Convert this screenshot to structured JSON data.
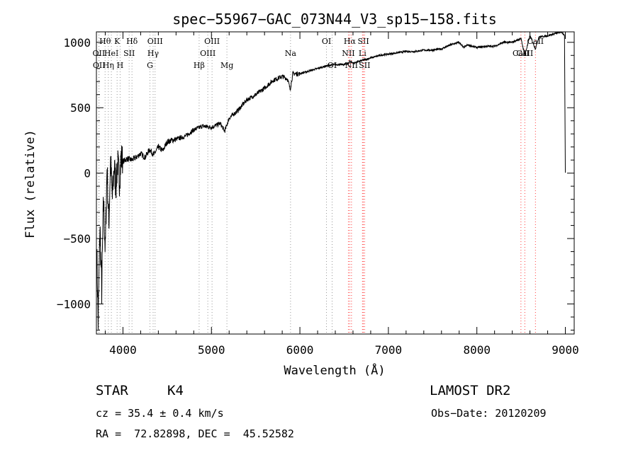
{
  "chart_data": {
    "type": "line",
    "title": "spec−55967−GAC_073N44_V3_sp15−158.fits",
    "xlabel": "Wavelength (Å)",
    "ylabel": "Flux (relative)",
    "xlim": [
      3700,
      9100
    ],
    "ylim": [
      -1230,
      1080
    ],
    "xticks": [
      4000,
      5000,
      6000,
      7000,
      8000,
      9000
    ],
    "yticks": [
      -1000,
      -500,
      0,
      500,
      1000
    ],
    "ytick_labels": [
      "−1000",
      "−500",
      "0",
      "500",
      "1000"
    ],
    "grid": false,
    "series": [
      {
        "x": [
          3705,
          3720,
          3740,
          3760,
          3780,
          3800,
          3820,
          3840,
          3860,
          3880,
          3900,
          3920,
          3940,
          3960,
          3980,
          4000,
          4050,
          4100,
          4150,
          4200,
          4250,
          4300,
          4350,
          4400,
          4450,
          4500,
          4600,
          4700,
          4800,
          4900,
          5000,
          5100,
          5150,
          5200,
          5300,
          5400,
          5500,
          5600,
          5700,
          5800,
          5860,
          5890,
          5920,
          6000,
          6100,
          6200,
          6300,
          6400,
          6500,
          6550,
          6563,
          6600,
          6700,
          6800,
          6900,
          7000,
          7100,
          7200,
          7300,
          7400,
          7500,
          7600,
          7700,
          7800,
          7850,
          7900,
          8000,
          8100,
          8200,
          8300,
          8400,
          8498,
          8542,
          8600,
          8662,
          8700,
          8800,
          8900,
          8960,
          8990,
          9000
        ],
        "y": [
          -600,
          -1150,
          -400,
          -900,
          -200,
          -600,
          50,
          -400,
          100,
          -200,
          60,
          -100,
          80,
          -50,
          120,
          90,
          110,
          100,
          120,
          150,
          120,
          180,
          140,
          200,
          170,
          240,
          260,
          280,
          330,
          360,
          350,
          380,
          320,
          420,
          480,
          560,
          600,
          650,
          710,
          740,
          720,
          640,
          760,
          760,
          780,
          800,
          820,
          830,
          830,
          840,
          860,
          840,
          860,
          880,
          900,
          910,
          920,
          930,
          930,
          940,
          940,
          950,
          980,
          1000,
          960,
          980,
          960,
          970,
          970,
          1000,
          1000,
          1030,
          900,
          1050,
          950,
          1040,
          1050,
          1070,
          1080,
          1050,
          0
        ],
        "color": "#000000"
      }
    ],
    "line_markers": [
      {
        "label": "OII",
        "x": 3727,
        "color": "gray",
        "tier": 1
      },
      {
        "label": "OII",
        "x": 3730,
        "color": "gray",
        "tier": 2
      },
      {
        "label": "Hθ",
        "x": 3798,
        "color": "gray",
        "tier": 0
      },
      {
        "label": "Hη",
        "x": 3835,
        "color": "gray",
        "tier": 2
      },
      {
        "label": "HeI",
        "x": 3869,
        "color": "gray",
        "tier": 1
      },
      {
        "label": "K",
        "x": 3934,
        "color": "gray",
        "tier": 0
      },
      {
        "label": "H",
        "x": 3968,
        "color": "gray",
        "tier": 2
      },
      {
        "label": "SII",
        "x": 4070,
        "color": "gray",
        "tier": 1
      },
      {
        "label": "Hδ",
        "x": 4102,
        "color": "gray",
        "tier": 0
      },
      {
        "label": "G",
        "x": 4305,
        "color": "gray",
        "tier": 2
      },
      {
        "label": "Hγ",
        "x": 4341,
        "color": "gray",
        "tier": 1
      },
      {
        "label": "OIII",
        "x": 4363,
        "color": "gray",
        "tier": 0
      },
      {
        "label": "Hβ",
        "x": 4861,
        "color": "gray",
        "tier": 2
      },
      {
        "label": "OIII",
        "x": 4959,
        "color": "gray",
        "tier": 1
      },
      {
        "label": "OIII",
        "x": 5007,
        "color": "gray",
        "tier": 0
      },
      {
        "label": "Mg",
        "x": 5175,
        "color": "gray",
        "tier": 2
      },
      {
        "label": "Na",
        "x": 5894,
        "color": "gray",
        "tier": 1
      },
      {
        "label": "OI",
        "x": 6300,
        "color": "gray",
        "tier": 0
      },
      {
        "label": "OI",
        "x": 6364,
        "color": "gray",
        "tier": 2
      },
      {
        "label": "NII",
        "x": 6548,
        "color": "red",
        "tier": 1
      },
      {
        "label": "Hα",
        "x": 6563,
        "color": "red",
        "tier": 0
      },
      {
        "label": "NII",
        "x": 6583,
        "color": "red",
        "tier": 2
      },
      {
        "label": "Li",
        "x": 6707,
        "color": "red",
        "tier": 1
      },
      {
        "label": "SII",
        "x": 6717,
        "color": "red",
        "tier": 0
      },
      {
        "label": "SII",
        "x": 6731,
        "color": "red",
        "tier": 2
      },
      {
        "label": "CaII",
        "x": 8498,
        "color": "red",
        "tier": 1
      },
      {
        "label": "CaII",
        "x": 8542,
        "color": "red",
        "tier": 1
      },
      {
        "label": "CaII",
        "x": 8662,
        "color": "red",
        "tier": 0
      }
    ]
  },
  "info": {
    "object_type": "STAR",
    "subclass": "K4",
    "survey": "LAMOST DR2",
    "redshift": "cz = 35.4 ± 0.4 km/s",
    "obs_date": "Obs−Date: 20120209",
    "coords": "RA =  72.82898, DEC =  45.52582"
  },
  "colors": {
    "axis": "#000000",
    "marker_gray": "#999999",
    "marker_red": "#ff3b3b"
  }
}
